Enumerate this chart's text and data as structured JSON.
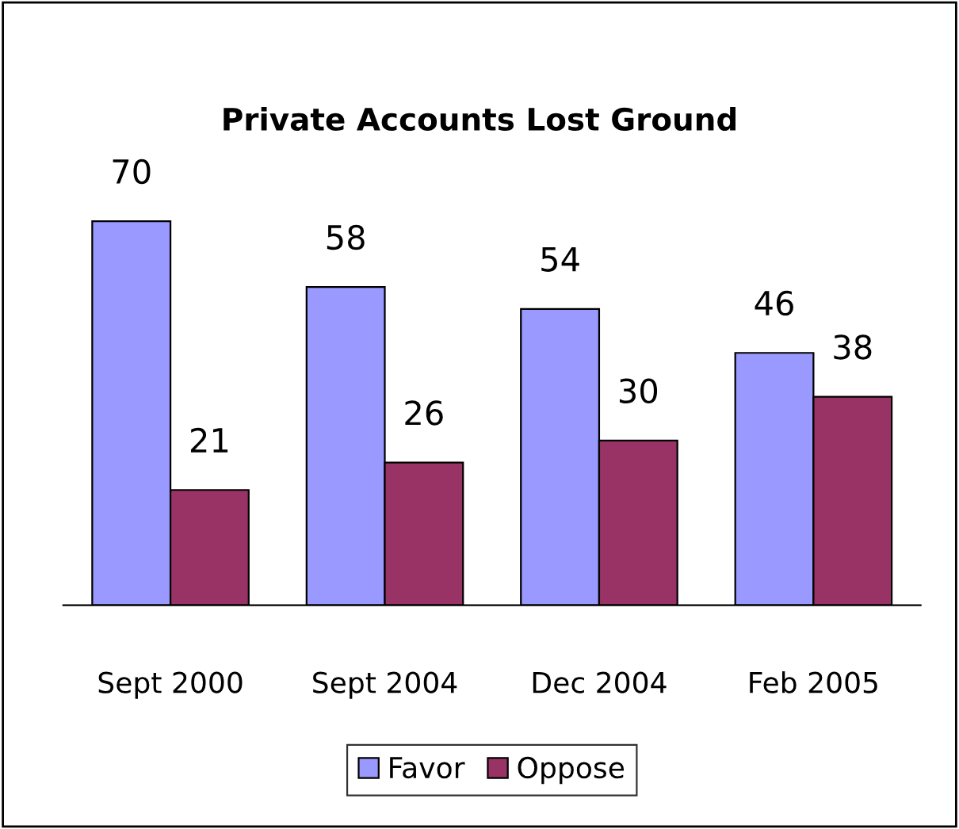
{
  "chart_data": {
    "type": "bar",
    "title": "Private Accounts Lost Ground",
    "categories": [
      "Sept 2000",
      "Sept 2004",
      "Dec 2004",
      "Feb 2005"
    ],
    "series": [
      {
        "name": "Favor",
        "color": "#9999ff",
        "values": [
          70,
          58,
          54,
          46
        ]
      },
      {
        "name": "Oppose",
        "color": "#993366",
        "values": [
          21,
          26,
          30,
          38
        ]
      }
    ],
    "data_labels": true,
    "legend": "bottom",
    "grid": false,
    "tick_labels": "x"
  }
}
